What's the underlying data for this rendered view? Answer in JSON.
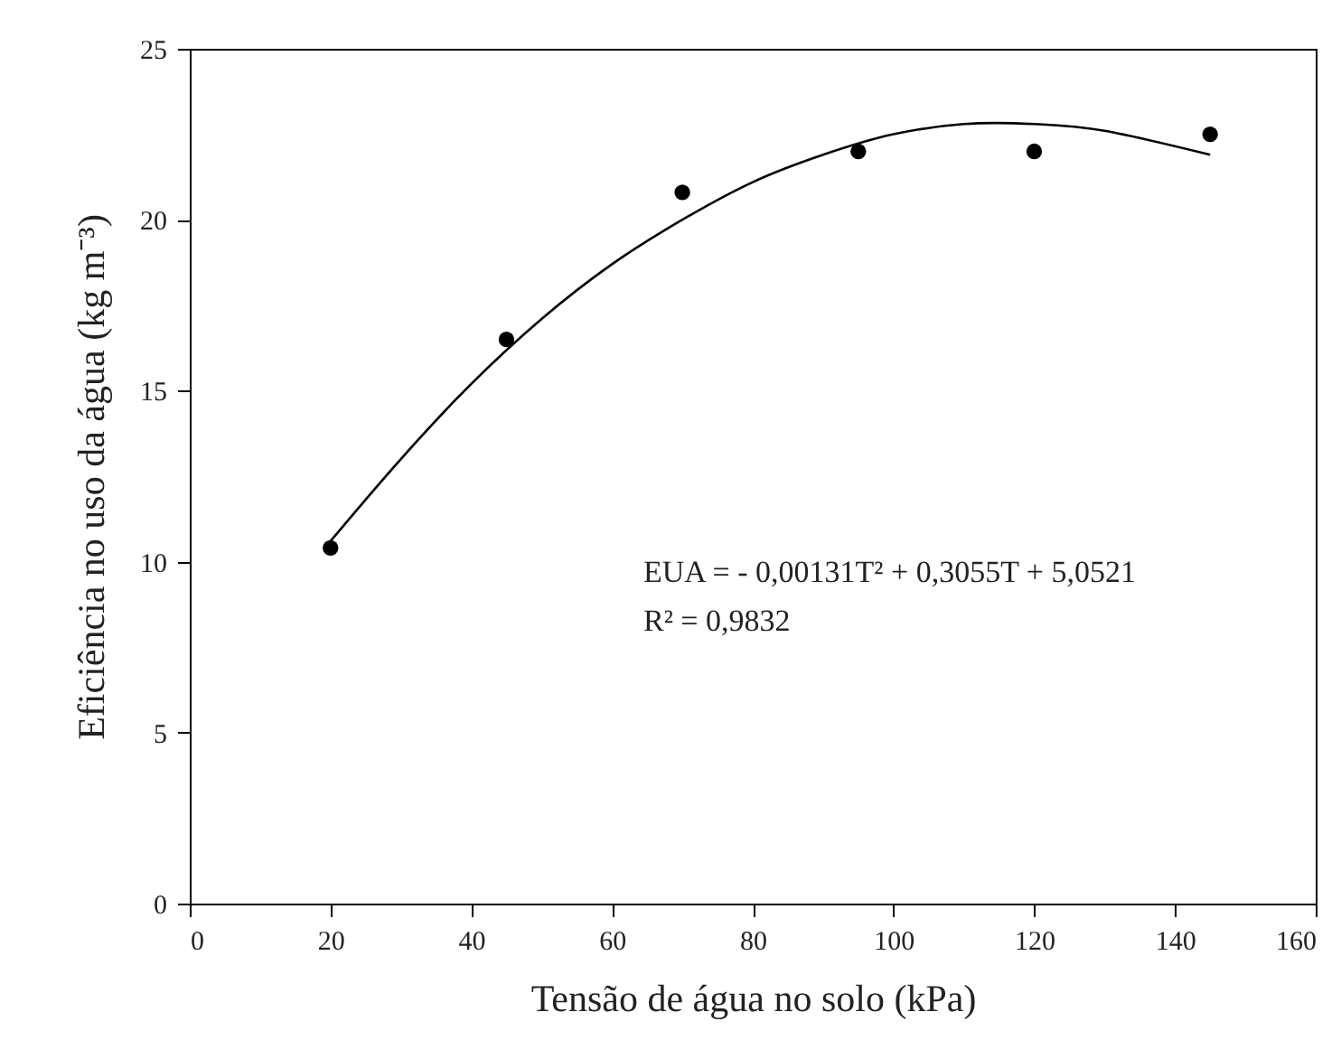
{
  "chart_data": {
    "type": "scatter",
    "xlabel": "Tensão de água no solo (kPa)",
    "ylabel": "Eficiência no uso da água (kg m⁻³)",
    "x": [
      20,
      45,
      70,
      95,
      120,
      145
    ],
    "series": [
      {
        "type": "scatter",
        "color": "#000000",
        "marker": "circle",
        "values": [
          10.4,
          16.5,
          20.8,
          22.0,
          22.0,
          22.5
        ]
      },
      {
        "type": "line",
        "color": "#000000",
        "marker": "none",
        "line_style": "solid",
        "x": [
          20,
          30,
          40,
          50,
          60,
          70,
          80,
          90,
          100,
          110,
          120,
          130,
          145
        ],
        "values": [
          10.6,
          13.0,
          15.2,
          17.1,
          18.7,
          20.0,
          21.1,
          21.9,
          22.5,
          22.8,
          22.8,
          22.6,
          21.9
        ]
      }
    ],
    "xlim": [
      0,
      160
    ],
    "xticks": [
      0,
      20,
      40,
      60,
      80,
      100,
      120,
      140,
      160
    ],
    "ylim": [
      0,
      25
    ],
    "yticks": [
      0,
      5,
      10,
      15,
      20,
      25
    ],
    "grid": false,
    "annotations": [
      "EUA = - 0,00131T² + 0,3055T + 5,0521",
      "R² = 0,9832"
    ]
  }
}
